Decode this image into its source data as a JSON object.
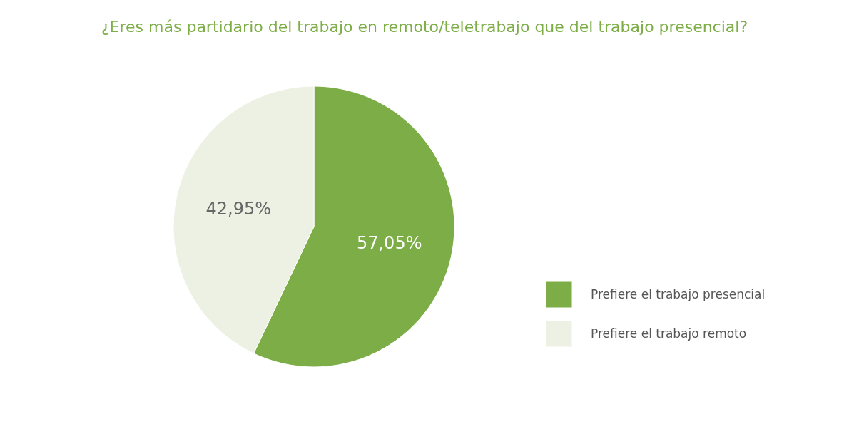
{
  "chart_data": {
    "type": "pie",
    "title": "¿Eres más partidario del trabajo en remoto/teletrabajo que del trabajo presencial?",
    "categories": [
      "Prefiere el trabajo presencial",
      "Prefiere el trabajo remoto"
    ],
    "values": [
      57.05,
      42.95
    ],
    "colors": [
      "#7cad46",
      "#edf1e3"
    ],
    "value_labels": [
      "57,05%",
      "42,95%"
    ],
    "legend": "right"
  }
}
